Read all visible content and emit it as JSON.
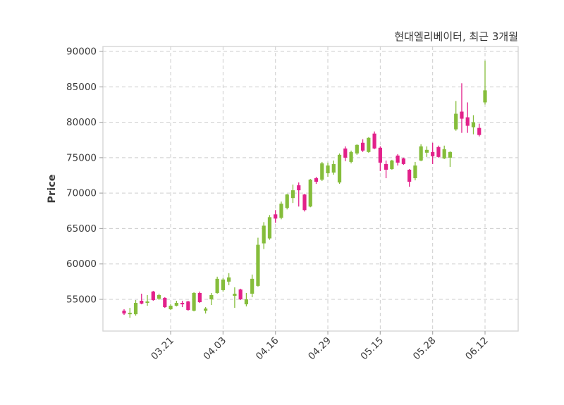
{
  "title": "현대엘리베이터, 최근 3개월",
  "y_axis_label": "Price",
  "colors": {
    "up": "#85bd3b",
    "down": "#e2218a",
    "grid": "#cdcdcd",
    "frame": "#d9d9d9",
    "tick": "#ababab",
    "text": "#3a3a3a",
    "background": "#ffffff"
  },
  "chart_data": {
    "type": "candlestick",
    "title": "현대엘리베이터, 최근 3개월",
    "xlabel": "",
    "ylabel": "Price",
    "grid": true,
    "legend_position": "none",
    "ylim": [
      51200,
      91000
    ],
    "y_ticks": [
      55000,
      60000,
      65000,
      70000,
      75000,
      80000,
      85000,
      90000
    ],
    "x_tick_labels": [
      "03.21",
      "04.03",
      "04.16",
      "04.29",
      "05.15",
      "05.28",
      "06.12"
    ],
    "candles": [
      {
        "date": "03.11",
        "open": 53400,
        "high": 53600,
        "low": 52800,
        "close": 53000
      },
      {
        "date": "03.12",
        "open": 52900,
        "high": 53800,
        "low": 52400,
        "close": 53100
      },
      {
        "date": "03.13",
        "open": 52900,
        "high": 54900,
        "low": 52700,
        "close": 54500
      },
      {
        "date": "03.14",
        "open": 54800,
        "high": 55800,
        "low": 54300,
        "close": 54400
      },
      {
        "date": "03.17",
        "open": 54500,
        "high": 55600,
        "low": 54100,
        "close": 54700
      },
      {
        "date": "03.18",
        "open": 56100,
        "high": 56200,
        "low": 54800,
        "close": 54900
      },
      {
        "date": "03.19",
        "open": 55100,
        "high": 55800,
        "low": 54900,
        "close": 55600
      },
      {
        "date": "03.20",
        "open": 55200,
        "high": 55300,
        "low": 53800,
        "close": 53900
      },
      {
        "date": "03.21",
        "open": 53600,
        "high": 54300,
        "low": 53500,
        "close": 54100
      },
      {
        "date": "03.24",
        "open": 54100,
        "high": 54800,
        "low": 54000,
        "close": 54500
      },
      {
        "date": "03.25",
        "open": 54500,
        "high": 54800,
        "low": 53900,
        "close": 54300
      },
      {
        "date": "03.26",
        "open": 54700,
        "high": 54800,
        "low": 53400,
        "close": 53500
      },
      {
        "date": "03.27",
        "open": 53400,
        "high": 56000,
        "low": 53300,
        "close": 55900
      },
      {
        "date": "03.28",
        "open": 55900,
        "high": 56100,
        "low": 54500,
        "close": 54600
      },
      {
        "date": "03.31",
        "open": 53400,
        "high": 53900,
        "low": 53000,
        "close": 53700
      },
      {
        "date": "04.01",
        "open": 55000,
        "high": 55900,
        "low": 54200,
        "close": 55600
      },
      {
        "date": "04.02",
        "open": 55900,
        "high": 58200,
        "low": 55800,
        "close": 57900
      },
      {
        "date": "04.03",
        "open": 56300,
        "high": 58000,
        "low": 56100,
        "close": 57800
      },
      {
        "date": "04.04",
        "open": 57500,
        "high": 58700,
        "low": 57000,
        "close": 58100
      },
      {
        "date": "04.07",
        "open": 55500,
        "high": 56700,
        "low": 53800,
        "close": 55800
      },
      {
        "date": "04.08",
        "open": 56400,
        "high": 56500,
        "low": 54900,
        "close": 55000
      },
      {
        "date": "04.09",
        "open": 54300,
        "high": 55900,
        "low": 54000,
        "close": 55000
      },
      {
        "date": "04.10",
        "open": 55800,
        "high": 58500,
        "low": 55300,
        "close": 57900
      },
      {
        "date": "04.11",
        "open": 56900,
        "high": 63700,
        "low": 56800,
        "close": 62700
      },
      {
        "date": "04.14",
        "open": 62900,
        "high": 65900,
        "low": 62100,
        "close": 65400
      },
      {
        "date": "04.15",
        "open": 63600,
        "high": 66900,
        "low": 63400,
        "close": 66600
      },
      {
        "date": "04.16",
        "open": 67000,
        "high": 67600,
        "low": 65800,
        "close": 66400
      },
      {
        "date": "04.17",
        "open": 66500,
        "high": 68800,
        "low": 66300,
        "close": 68500
      },
      {
        "date": "04.18",
        "open": 67900,
        "high": 69900,
        "low": 67700,
        "close": 69800
      },
      {
        "date": "04.21",
        "open": 69300,
        "high": 71200,
        "low": 68600,
        "close": 70400
      },
      {
        "date": "04.22",
        "open": 71100,
        "high": 71500,
        "low": 68100,
        "close": 70400
      },
      {
        "date": "04.23",
        "open": 69800,
        "high": 69900,
        "low": 67400,
        "close": 67600
      },
      {
        "date": "04.24",
        "open": 68100,
        "high": 72000,
        "low": 68000,
        "close": 71900
      },
      {
        "date": "04.25",
        "open": 72100,
        "high": 72300,
        "low": 71300,
        "close": 71600
      },
      {
        "date": "04.28",
        "open": 71900,
        "high": 74400,
        "low": 71700,
        "close": 74200
      },
      {
        "date": "04.29",
        "open": 72800,
        "high": 74300,
        "low": 72300,
        "close": 73900
      },
      {
        "date": "04.30",
        "open": 72900,
        "high": 74600,
        "low": 72600,
        "close": 74100
      },
      {
        "date": "05.02",
        "open": 71500,
        "high": 75600,
        "low": 71300,
        "close": 75400
      },
      {
        "date": "05.07",
        "open": 76300,
        "high": 76600,
        "low": 74500,
        "close": 75000
      },
      {
        "date": "05.08",
        "open": 74400,
        "high": 76000,
        "low": 74200,
        "close": 75800
      },
      {
        "date": "05.09",
        "open": 75600,
        "high": 76900,
        "low": 75400,
        "close": 76800
      },
      {
        "date": "05.12",
        "open": 77100,
        "high": 77600,
        "low": 75800,
        "close": 76000
      },
      {
        "date": "05.13",
        "open": 75800,
        "high": 77900,
        "low": 75700,
        "close": 77800
      },
      {
        "date": "05.14",
        "open": 78400,
        "high": 78700,
        "low": 76200,
        "close": 76300
      },
      {
        "date": "05.15",
        "open": 76400,
        "high": 76600,
        "low": 73100,
        "close": 74300
      },
      {
        "date": "05.16",
        "open": 74100,
        "high": 74600,
        "low": 72100,
        "close": 73300
      },
      {
        "date": "05.19",
        "open": 73400,
        "high": 74700,
        "low": 73300,
        "close": 74600
      },
      {
        "date": "05.20",
        "open": 75300,
        "high": 75500,
        "low": 73900,
        "close": 74300
      },
      {
        "date": "05.21",
        "open": 74900,
        "high": 75000,
        "low": 74000,
        "close": 74100
      },
      {
        "date": "05.22",
        "open": 73300,
        "high": 73400,
        "low": 70900,
        "close": 71600
      },
      {
        "date": "05.23",
        "open": 72100,
        "high": 74400,
        "low": 71800,
        "close": 73900
      },
      {
        "date": "05.26",
        "open": 74600,
        "high": 76900,
        "low": 74500,
        "close": 76600
      },
      {
        "date": "05.27",
        "open": 75700,
        "high": 76600,
        "low": 75100,
        "close": 76100
      },
      {
        "date": "05.28",
        "open": 75800,
        "high": 77100,
        "low": 74100,
        "close": 75200
      },
      {
        "date": "05.29",
        "open": 76500,
        "high": 76700,
        "low": 75000,
        "close": 75100
      },
      {
        "date": "05.30",
        "open": 74900,
        "high": 76700,
        "low": 74800,
        "close": 76200
      },
      {
        "date": "06.02",
        "open": 75000,
        "high": 75900,
        "low": 73700,
        "close": 75800
      },
      {
        "date": "06.04",
        "open": 79000,
        "high": 83000,
        "low": 78800,
        "close": 81200
      },
      {
        "date": "06.05",
        "open": 81500,
        "high": 85500,
        "low": 78500,
        "close": 80500
      },
      {
        "date": "06.09",
        "open": 80700,
        "high": 82800,
        "low": 78500,
        "close": 79500
      },
      {
        "date": "06.10",
        "open": 79300,
        "high": 81000,
        "low": 78300,
        "close": 80000
      },
      {
        "date": "06.11",
        "open": 79200,
        "high": 79800,
        "low": 78000,
        "close": 78200
      },
      {
        "date": "06.12",
        "open": 82800,
        "high": 88700,
        "low": 82500,
        "close": 84500
      }
    ]
  }
}
